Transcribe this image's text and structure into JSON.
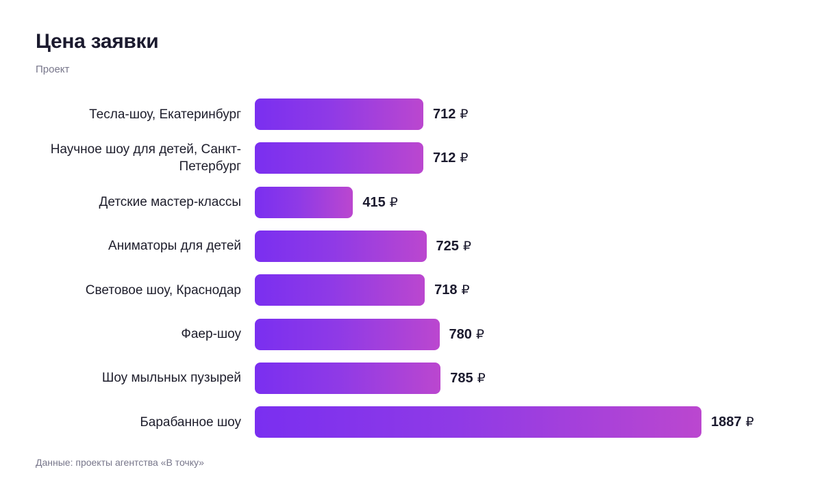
{
  "header": {
    "title": "Цена заявки",
    "subtitle": "Проект"
  },
  "footer": {
    "source": "Данные: проекты агентства «В точку»"
  },
  "colors": {
    "bar_start": "#7a2ff0",
    "bar_end": "#bb47cf",
    "text": "#1b1a2e",
    "muted": "#77768a"
  },
  "chart_data": {
    "type": "bar",
    "orientation": "horizontal",
    "title": "Цена заявки",
    "subtitle": "Проект",
    "currency_symbol": "₽",
    "categories": [
      "Тесла-шоу, Екатеринбург",
      "Научное шоу для детей, Санкт-Петербург",
      "Детские мастер-классы",
      "Аниматоры для детей",
      "Световое шоу, Краснодар",
      "Фаер-шоу",
      "Шоу мыльных пузырей",
      "Барабанное шоу"
    ],
    "values": [
      712,
      712,
      415,
      725,
      718,
      780,
      785,
      1887
    ],
    "value_labels": [
      "712",
      "712",
      "415",
      "725",
      "718",
      "780",
      "785",
      "1887"
    ],
    "grid": false,
    "legend": "none"
  }
}
